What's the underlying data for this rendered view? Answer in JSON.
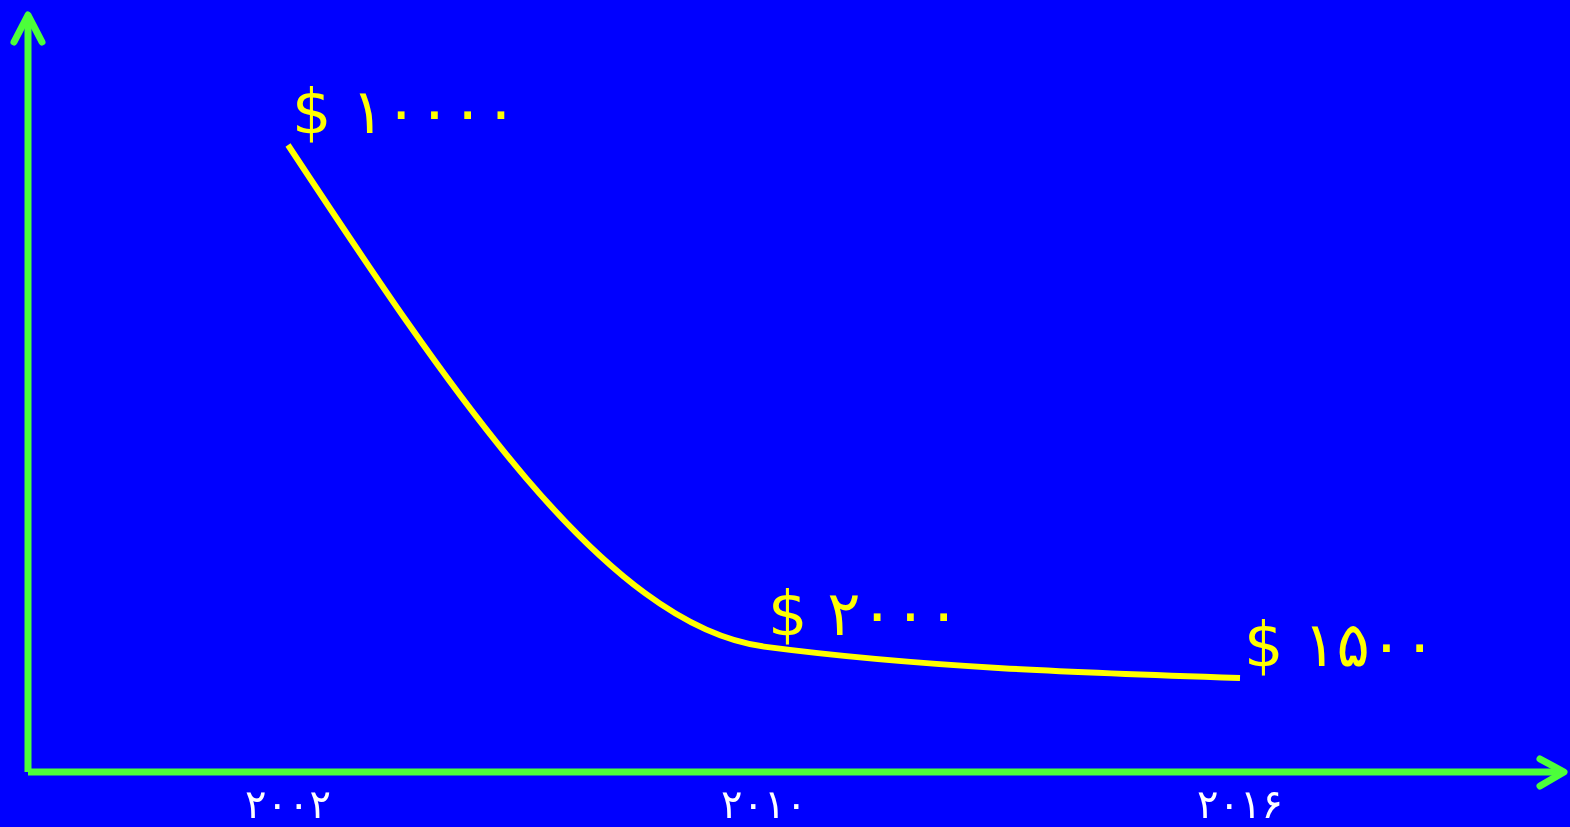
{
  "chart_data": {
    "type": "line",
    "categories": [
      "۲۰۰۲",
      "۲۰۱۰",
      "۲۰۱۶"
    ],
    "series": [
      {
        "color": "#ffff00",
        "values": [
          10000,
          2000,
          1500
        ],
        "value_labels": [
          "$ ۱۰۰۰۰",
          "$ ۲۰۰۰",
          "$ ۱۵۰۰"
        ]
      }
    ],
    "marker": "none",
    "line_style": "solid"
  }
}
